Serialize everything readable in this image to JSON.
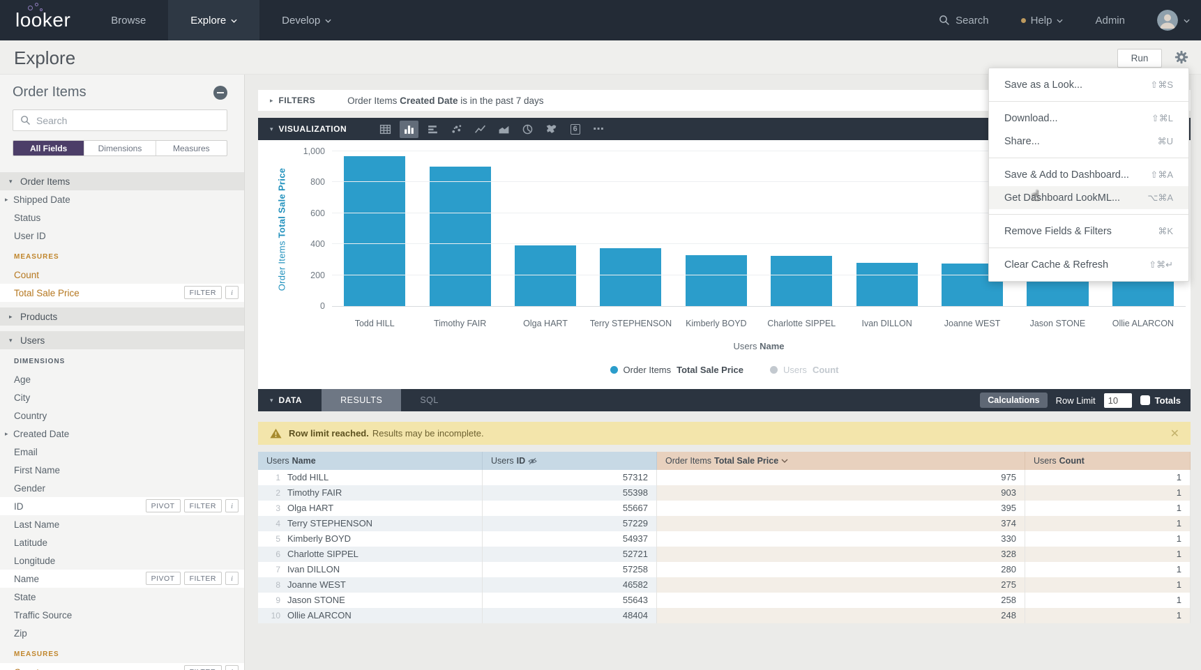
{
  "nav": {
    "logo_text": "looker",
    "items": [
      {
        "label": "Browse",
        "chevron": false,
        "active": false
      },
      {
        "label": "Explore",
        "chevron": true,
        "active": true
      },
      {
        "label": "Develop",
        "chevron": true,
        "active": false
      }
    ],
    "search_label": "Search",
    "help_label": "Help",
    "admin_label": "Admin"
  },
  "page": {
    "title": "Explore",
    "run_button": "Run"
  },
  "sidebar": {
    "view_title": "Order Items",
    "search_placeholder": "Search",
    "tabs": [
      {
        "label": "All Fields",
        "active": true
      },
      {
        "label": "Dimensions",
        "active": false
      },
      {
        "label": "Measures",
        "active": false
      }
    ],
    "rows": [
      {
        "type": "group",
        "label": "Order Items",
        "state": "expanded"
      },
      {
        "type": "field",
        "label": "Shipped Date",
        "expandable": true
      },
      {
        "type": "field",
        "label": "Status"
      },
      {
        "type": "field",
        "label": "User ID"
      },
      {
        "type": "label",
        "label": "MEASURES",
        "kind": "measure"
      },
      {
        "type": "field",
        "label": "Count",
        "kind": "measure"
      },
      {
        "type": "field",
        "label": "Total Sale Price",
        "kind": "measure",
        "selected": true,
        "buttons": [
          "FILTER"
        ],
        "info": true
      },
      {
        "type": "group",
        "label": "Products",
        "state": "collapsed"
      },
      {
        "type": "group",
        "label": "Users",
        "state": "expanded"
      },
      {
        "type": "label",
        "label": "DIMENSIONS",
        "kind": "dimension"
      },
      {
        "type": "field",
        "label": "Age"
      },
      {
        "type": "field",
        "label": "City"
      },
      {
        "type": "field",
        "label": "Country"
      },
      {
        "type": "field",
        "label": "Created Date",
        "expandable": true
      },
      {
        "type": "field",
        "label": "Email"
      },
      {
        "type": "field",
        "label": "First Name"
      },
      {
        "type": "field",
        "label": "Gender"
      },
      {
        "type": "field",
        "label": "ID",
        "selected": true,
        "buttons": [
          "PIVOT",
          "FILTER"
        ],
        "info": true
      },
      {
        "type": "field",
        "label": "Last Name"
      },
      {
        "type": "field",
        "label": "Latitude"
      },
      {
        "type": "field",
        "label": "Longitude"
      },
      {
        "type": "field",
        "label": "Name",
        "selected": true,
        "buttons": [
          "PIVOT",
          "FILTER"
        ],
        "info": true
      },
      {
        "type": "field",
        "label": "State"
      },
      {
        "type": "field",
        "label": "Traffic Source"
      },
      {
        "type": "field",
        "label": "Zip"
      },
      {
        "type": "label",
        "label": "MEASURES",
        "kind": "measure"
      },
      {
        "type": "field",
        "label": "Count",
        "kind": "measure",
        "selected": true,
        "buttons": [
          "FILTER"
        ],
        "info": true
      }
    ]
  },
  "filters_bar": {
    "title": "FILTERS",
    "text_prefix": "Order Items",
    "text_bold": "Created Date",
    "text_suffix": "is in the past 7 days"
  },
  "viz_bar": {
    "title": "VISUALIZATION",
    "icons": [
      {
        "name": "table",
        "active": false
      },
      {
        "name": "column",
        "active": true
      },
      {
        "name": "bar",
        "active": false
      },
      {
        "name": "scatter",
        "active": false
      },
      {
        "name": "line",
        "active": false
      },
      {
        "name": "area",
        "active": false
      },
      {
        "name": "pie",
        "active": false
      },
      {
        "name": "map",
        "active": false
      },
      {
        "name": "single-value",
        "glyph": "6",
        "active": false
      },
      {
        "name": "more",
        "active": false
      }
    ]
  },
  "chart_data": {
    "type": "bar",
    "title": "",
    "categories": [
      "Todd HILL",
      "Timothy FAIR",
      "Olga HART",
      "Terry STEPHENSON",
      "Kimberly BOYD",
      "Charlotte SIPPEL",
      "Ivan DILLON",
      "Joanne WEST",
      "Jason STONE",
      "Ollie ALARCON"
    ],
    "series": [
      {
        "name": "Order Items Total Sale Price",
        "values": [
          975,
          903,
          395,
          374,
          330,
          328,
          280,
          275,
          258,
          248
        ],
        "color": "#2b9dcb",
        "visible": true
      },
      {
        "name": "Users Count",
        "values": [
          1,
          1,
          1,
          1,
          1,
          1,
          1,
          1,
          1,
          1
        ],
        "color": "#c3c9cf",
        "visible": false
      }
    ],
    "xlabel": "Users Name",
    "ylabel": "Order Items Total Sale Price",
    "xlabel_parts": {
      "prefix": "Users",
      "bold": "Name"
    },
    "ylabel_parts": {
      "prefix": "Order Items",
      "bold": "Total Sale Price"
    },
    "ylim": [
      0,
      1000
    ],
    "yticks": [
      0,
      200,
      400,
      600,
      800,
      1000
    ],
    "ytick_labels": [
      "0",
      "200",
      "400",
      "600",
      "800",
      "1,000"
    ],
    "grid": true,
    "legend_position": "bottom",
    "legend": [
      {
        "prefix": "Order Items",
        "bold": "Total Sale Price",
        "color": "#2b9dcb",
        "dimmed": false
      },
      {
        "prefix": "Users",
        "bold": "Count",
        "color": "#c3c9cf",
        "dimmed": true
      }
    ]
  },
  "data_bar": {
    "title": "DATA",
    "tabs": [
      {
        "label": "RESULTS",
        "active": true
      },
      {
        "label": "SQL",
        "active": false
      }
    ],
    "calculations_button": "Calculations",
    "row_limit_label": "Row Limit",
    "row_limit_value": "10",
    "totals_label": "Totals",
    "totals_checked": false
  },
  "warning_bar": {
    "bold_text": "Row limit reached.",
    "text": "Results may be incomplete."
  },
  "results_table": {
    "columns": [
      {
        "prefix": "Users",
        "name": "Name",
        "kind": "dimension",
        "hidden": false,
        "sort": null
      },
      {
        "prefix": "Users",
        "name": "ID",
        "kind": "dimension",
        "hidden": true,
        "sort": null
      },
      {
        "prefix": "Order Items",
        "name": "Total Sale Price",
        "kind": "measure",
        "hidden": false,
        "sort": "desc"
      },
      {
        "prefix": "Users",
        "name": "Count",
        "kind": "measure",
        "hidden": false,
        "sort": null
      }
    ],
    "rows": [
      {
        "n": "1",
        "name": "Todd HILL",
        "id": "57312",
        "total_sale_price": "975",
        "count": "1"
      },
      {
        "n": "2",
        "name": "Timothy FAIR",
        "id": "55398",
        "total_sale_price": "903",
        "count": "1"
      },
      {
        "n": "3",
        "name": "Olga HART",
        "id": "55667",
        "total_sale_price": "395",
        "count": "1"
      },
      {
        "n": "4",
        "name": "Terry STEPHENSON",
        "id": "57229",
        "total_sale_price": "374",
        "count": "1"
      },
      {
        "n": "5",
        "name": "Kimberly BOYD",
        "id": "54937",
        "total_sale_price": "330",
        "count": "1"
      },
      {
        "n": "6",
        "name": "Charlotte SIPPEL",
        "id": "52721",
        "total_sale_price": "328",
        "count": "1"
      },
      {
        "n": "7",
        "name": "Ivan DILLON",
        "id": "57258",
        "total_sale_price": "280",
        "count": "1"
      },
      {
        "n": "8",
        "name": "Joanne WEST",
        "id": "46582",
        "total_sale_price": "275",
        "count": "1"
      },
      {
        "n": "9",
        "name": "Jason STONE",
        "id": "55643",
        "total_sale_price": "258",
        "count": "1"
      },
      {
        "n": "10",
        "name": "Ollie ALARCON",
        "id": "48404",
        "total_sale_price": "248",
        "count": "1"
      }
    ]
  },
  "gear_menu": {
    "groups": [
      [
        {
          "label": "Save as a Look...",
          "shortcut": "⇧⌘S",
          "hover": false
        }
      ],
      [
        {
          "label": "Download...",
          "shortcut": "⇧⌘L",
          "hover": false
        },
        {
          "label": "Share...",
          "shortcut": "⌘U",
          "hover": false
        }
      ],
      [
        {
          "label": "Save & Add to Dashboard...",
          "shortcut": "⇧⌘A",
          "hover": false
        },
        {
          "label": "Get Dashboard LookML...",
          "shortcut": "⌥⌘A",
          "hover": true
        }
      ],
      [
        {
          "label": "Remove Fields & Filters",
          "shortcut": "⌘K",
          "hover": false
        }
      ],
      [
        {
          "label": "Clear Cache & Refresh",
          "shortcut": "⇧⌘↵",
          "hover": false
        }
      ]
    ]
  },
  "colors": {
    "nav_bg": "#232b36",
    "accent_purple": "#4c3e68",
    "bar_blue": "#2b9dcb",
    "measure_orange": "#b5771f",
    "warning_bg": "#f3e5ab",
    "dimension_header_bg": "#c7d9e5",
    "measure_header_bg": "#e8d1be"
  }
}
